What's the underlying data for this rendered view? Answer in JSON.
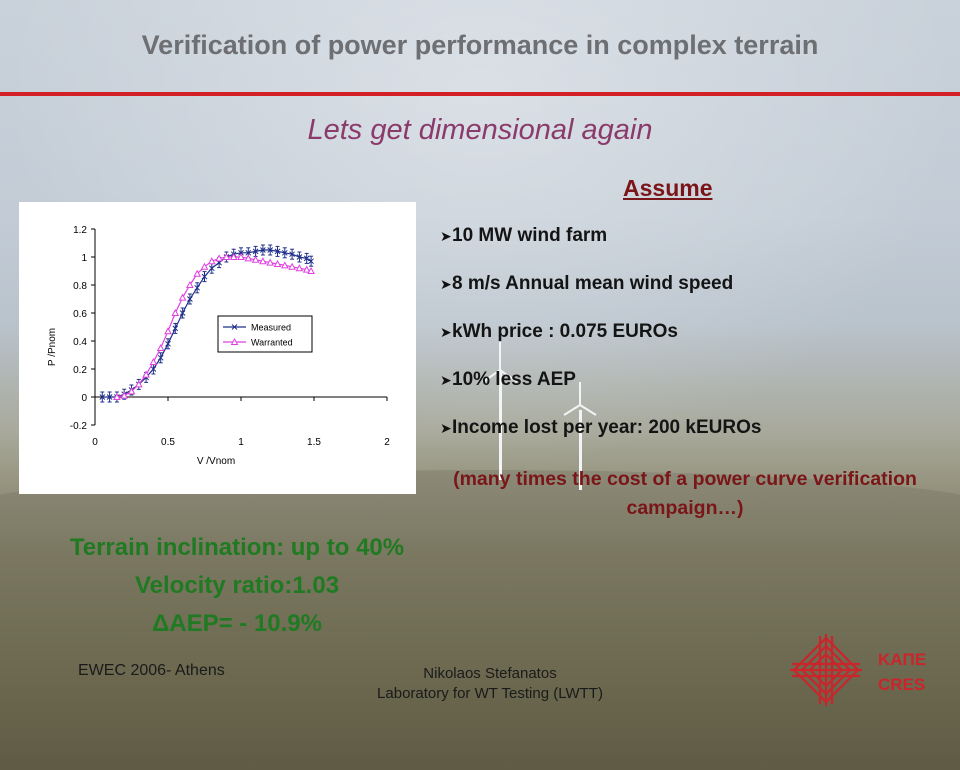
{
  "header": {
    "title": "Verification of power performance in complex terrain",
    "accent_color": "#d31f26"
  },
  "subtitle": "Lets get dimensional again",
  "assume": {
    "title": "Assume",
    "items": [
      "10 MW wind farm",
      "8 m/s Annual mean wind speed",
      "kWh price : 0.075 EUROs",
      "10% less AEP",
      "Income lost per year: 200 kEUROs"
    ],
    "note": "(many times the cost of a power curve verification campaign…)"
  },
  "terrain": {
    "line1": "Terrain inclination: up to 40%",
    "line2": "Velocity ratio:1.03",
    "line3": "ΔAEP= - 10.9%"
  },
  "footer": {
    "left": "EWEC 2006- Athens",
    "center_line1": "Nikolaos Stefanatos",
    "center_line2": "Laboratory for WT Testing (LWTT)"
  },
  "logo": {
    "line1": "ΚΑΠΕ",
    "line2": "CRES",
    "color": "#c9252b"
  },
  "chart_data": {
    "type": "line",
    "xlabel": "V /Vnom",
    "ylabel": "P /Pnom",
    "xlim": [
      0,
      2
    ],
    "ylim": [
      -0.2,
      1.2
    ],
    "xticks": [
      "0",
      "0.5",
      "1",
      "1.5",
      "2"
    ],
    "yticks": [
      "-0.2",
      "0",
      "0.2",
      "0.4",
      "0.6",
      "0.8",
      "1",
      "1.2"
    ],
    "grid": false,
    "legend_position": "right",
    "series": [
      {
        "name": "Measured",
        "color": "#1f2f8a",
        "marker": "x",
        "error_bars": true,
        "x": [
          0.05,
          0.1,
          0.15,
          0.2,
          0.25,
          0.3,
          0.35,
          0.4,
          0.45,
          0.5,
          0.55,
          0.6,
          0.65,
          0.7,
          0.75,
          0.8,
          0.85,
          0.9,
          0.95,
          1.0,
          1.05,
          1.1,
          1.15,
          1.2,
          1.25,
          1.3,
          1.35,
          1.4,
          1.45,
          1.48
        ],
        "y": [
          0.0,
          0.0,
          0.0,
          0.02,
          0.05,
          0.09,
          0.14,
          0.2,
          0.28,
          0.38,
          0.49,
          0.6,
          0.7,
          0.78,
          0.86,
          0.92,
          0.96,
          1.0,
          1.02,
          1.03,
          1.03,
          1.04,
          1.05,
          1.05,
          1.04,
          1.03,
          1.02,
          1.0,
          0.99,
          0.97
        ]
      },
      {
        "name": "Warranted",
        "color": "#e040e0",
        "marker": "triangle",
        "error_bars": false,
        "x": [
          0.15,
          0.2,
          0.25,
          0.3,
          0.35,
          0.4,
          0.45,
          0.5,
          0.55,
          0.6,
          0.65,
          0.7,
          0.75,
          0.8,
          0.85,
          0.9,
          0.95,
          1.0,
          1.05,
          1.1,
          1.15,
          1.2,
          1.25,
          1.3,
          1.35,
          1.4,
          1.45,
          1.48
        ],
        "y": [
          0.0,
          0.01,
          0.04,
          0.09,
          0.16,
          0.25,
          0.35,
          0.47,
          0.6,
          0.71,
          0.8,
          0.88,
          0.93,
          0.97,
          0.99,
          1.0,
          1.0,
          1.0,
          0.99,
          0.98,
          0.97,
          0.96,
          0.95,
          0.94,
          0.93,
          0.92,
          0.91,
          0.9
        ]
      }
    ]
  }
}
